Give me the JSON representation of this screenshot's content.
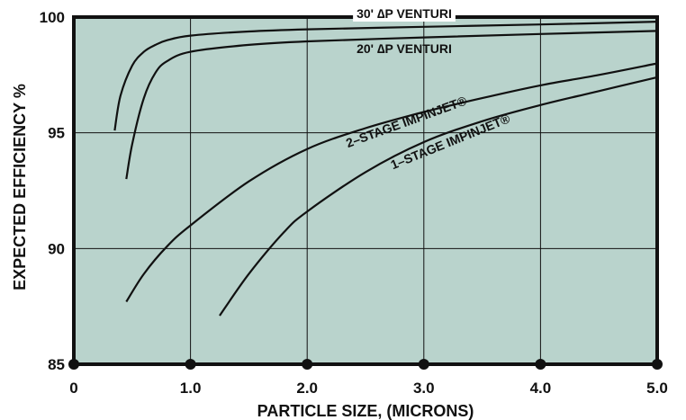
{
  "chart_data": {
    "type": "line",
    "title": "",
    "xlabel": "PARTICLE SIZE, (MICRONS)",
    "ylabel": "EXPECTED EFFICIENCY %",
    "xlim": [
      0,
      5
    ],
    "ylim": [
      85,
      100
    ],
    "x_ticks": [
      "0",
      "1.0",
      "2.0",
      "3.0",
      "4.0",
      "5.0"
    ],
    "y_ticks": [
      "85",
      "90",
      "95",
      "100"
    ],
    "grid": true,
    "legend": "none",
    "colors": {
      "plot_background": "#b9d3cc",
      "line": "#111111"
    },
    "series": [
      {
        "name": "30' ∆P VENTURI",
        "x": [
          0.35,
          0.4,
          0.5,
          0.6,
          0.7,
          0.8,
          1.0,
          1.5,
          2.0,
          3.0,
          4.0,
          5.0
        ],
        "y": [
          95.1,
          96.6,
          97.9,
          98.5,
          98.8,
          99.0,
          99.2,
          99.38,
          99.47,
          99.58,
          99.68,
          99.8
        ]
      },
      {
        "name": "20' ∆P VENTURI",
        "x": [
          0.45,
          0.5,
          0.6,
          0.7,
          0.8,
          1.0,
          1.5,
          2.0,
          3.0,
          4.0,
          5.0
        ],
        "y": [
          93.0,
          94.5,
          96.5,
          97.6,
          98.1,
          98.5,
          98.8,
          98.95,
          99.12,
          99.27,
          99.4
        ]
      },
      {
        "name": "2–STAGE IMPINJET®",
        "x": [
          0.45,
          0.6,
          0.8,
          1.0,
          1.5,
          2.0,
          2.5,
          3.0,
          3.5,
          4.0,
          4.5,
          5.0
        ],
        "y": [
          87.7,
          88.9,
          90.1,
          91.0,
          92.9,
          94.3,
          95.2,
          95.9,
          96.5,
          97.05,
          97.5,
          98.0
        ]
      },
      {
        "name": "1–STAGE IMPINJET®",
        "x": [
          1.25,
          1.5,
          1.8,
          2.0,
          2.5,
          3.0,
          3.5,
          4.0,
          4.5,
          5.0
        ],
        "y": [
          87.1,
          88.9,
          90.7,
          91.6,
          93.3,
          94.6,
          95.5,
          96.2,
          96.8,
          97.4
        ]
      }
    ],
    "curve_labels": [
      "30' ∆P VENTURI",
      "20' ∆P VENTURI",
      "2–STAGE IMPINJET®",
      "1–STAGE IMPINJET®"
    ]
  }
}
